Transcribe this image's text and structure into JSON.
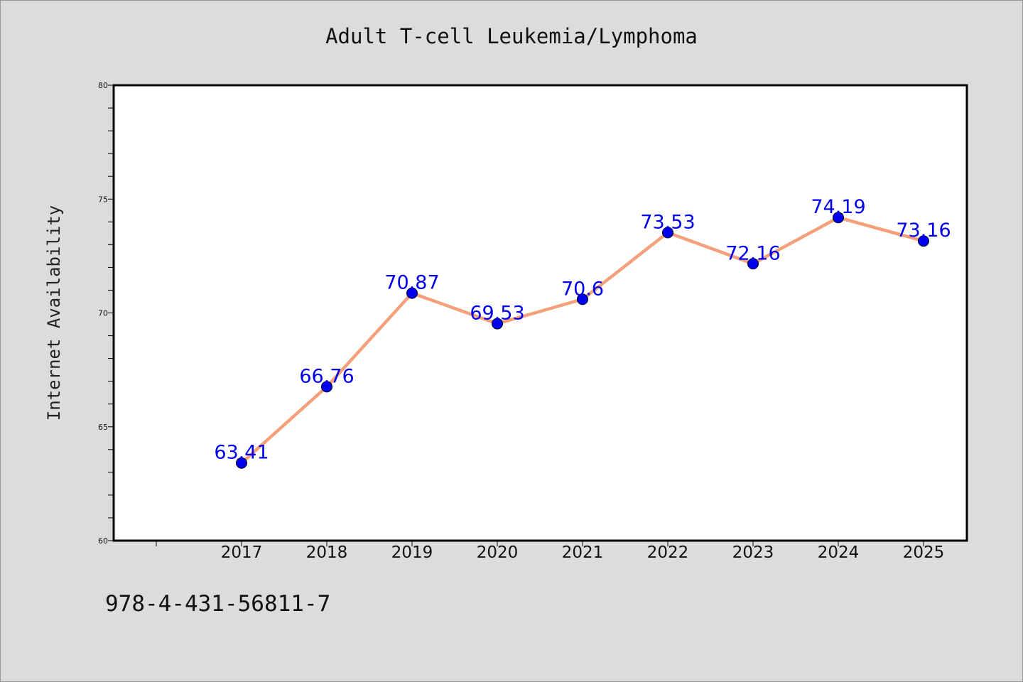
{
  "chart_data": {
    "type": "line",
    "title": "Adult T-cell Leukemia/Lymphoma",
    "xlabel": "",
    "ylabel": "Internet Availability",
    "categories": [
      "2017",
      "2018",
      "2019",
      "2020",
      "2021",
      "2022",
      "2023",
      "2024",
      "2025"
    ],
    "series": [
      {
        "values": [
          63.41,
          66.76,
          70.87,
          69.53,
          70.6,
          73.53,
          72.16,
          74.19,
          73.16
        ],
        "labels": [
          "63.41",
          "66.76",
          "70.87",
          "69.53",
          "70.6",
          "73.53",
          "72.16",
          "74.19",
          "73.16"
        ],
        "line_color": "#f4a07a",
        "marker_color": "#0000ee"
      }
    ],
    "ylim": [
      60,
      80
    ],
    "yticks": [
      60,
      65,
      70,
      75,
      80
    ],
    "ytick_labels": [
      "60",
      "65",
      "70",
      "75",
      "80"
    ],
    "grid": false,
    "background": "#ffffff",
    "page_background": "#dcdcdc"
  },
  "footer": {
    "code": "978-4-431-56811-7"
  }
}
